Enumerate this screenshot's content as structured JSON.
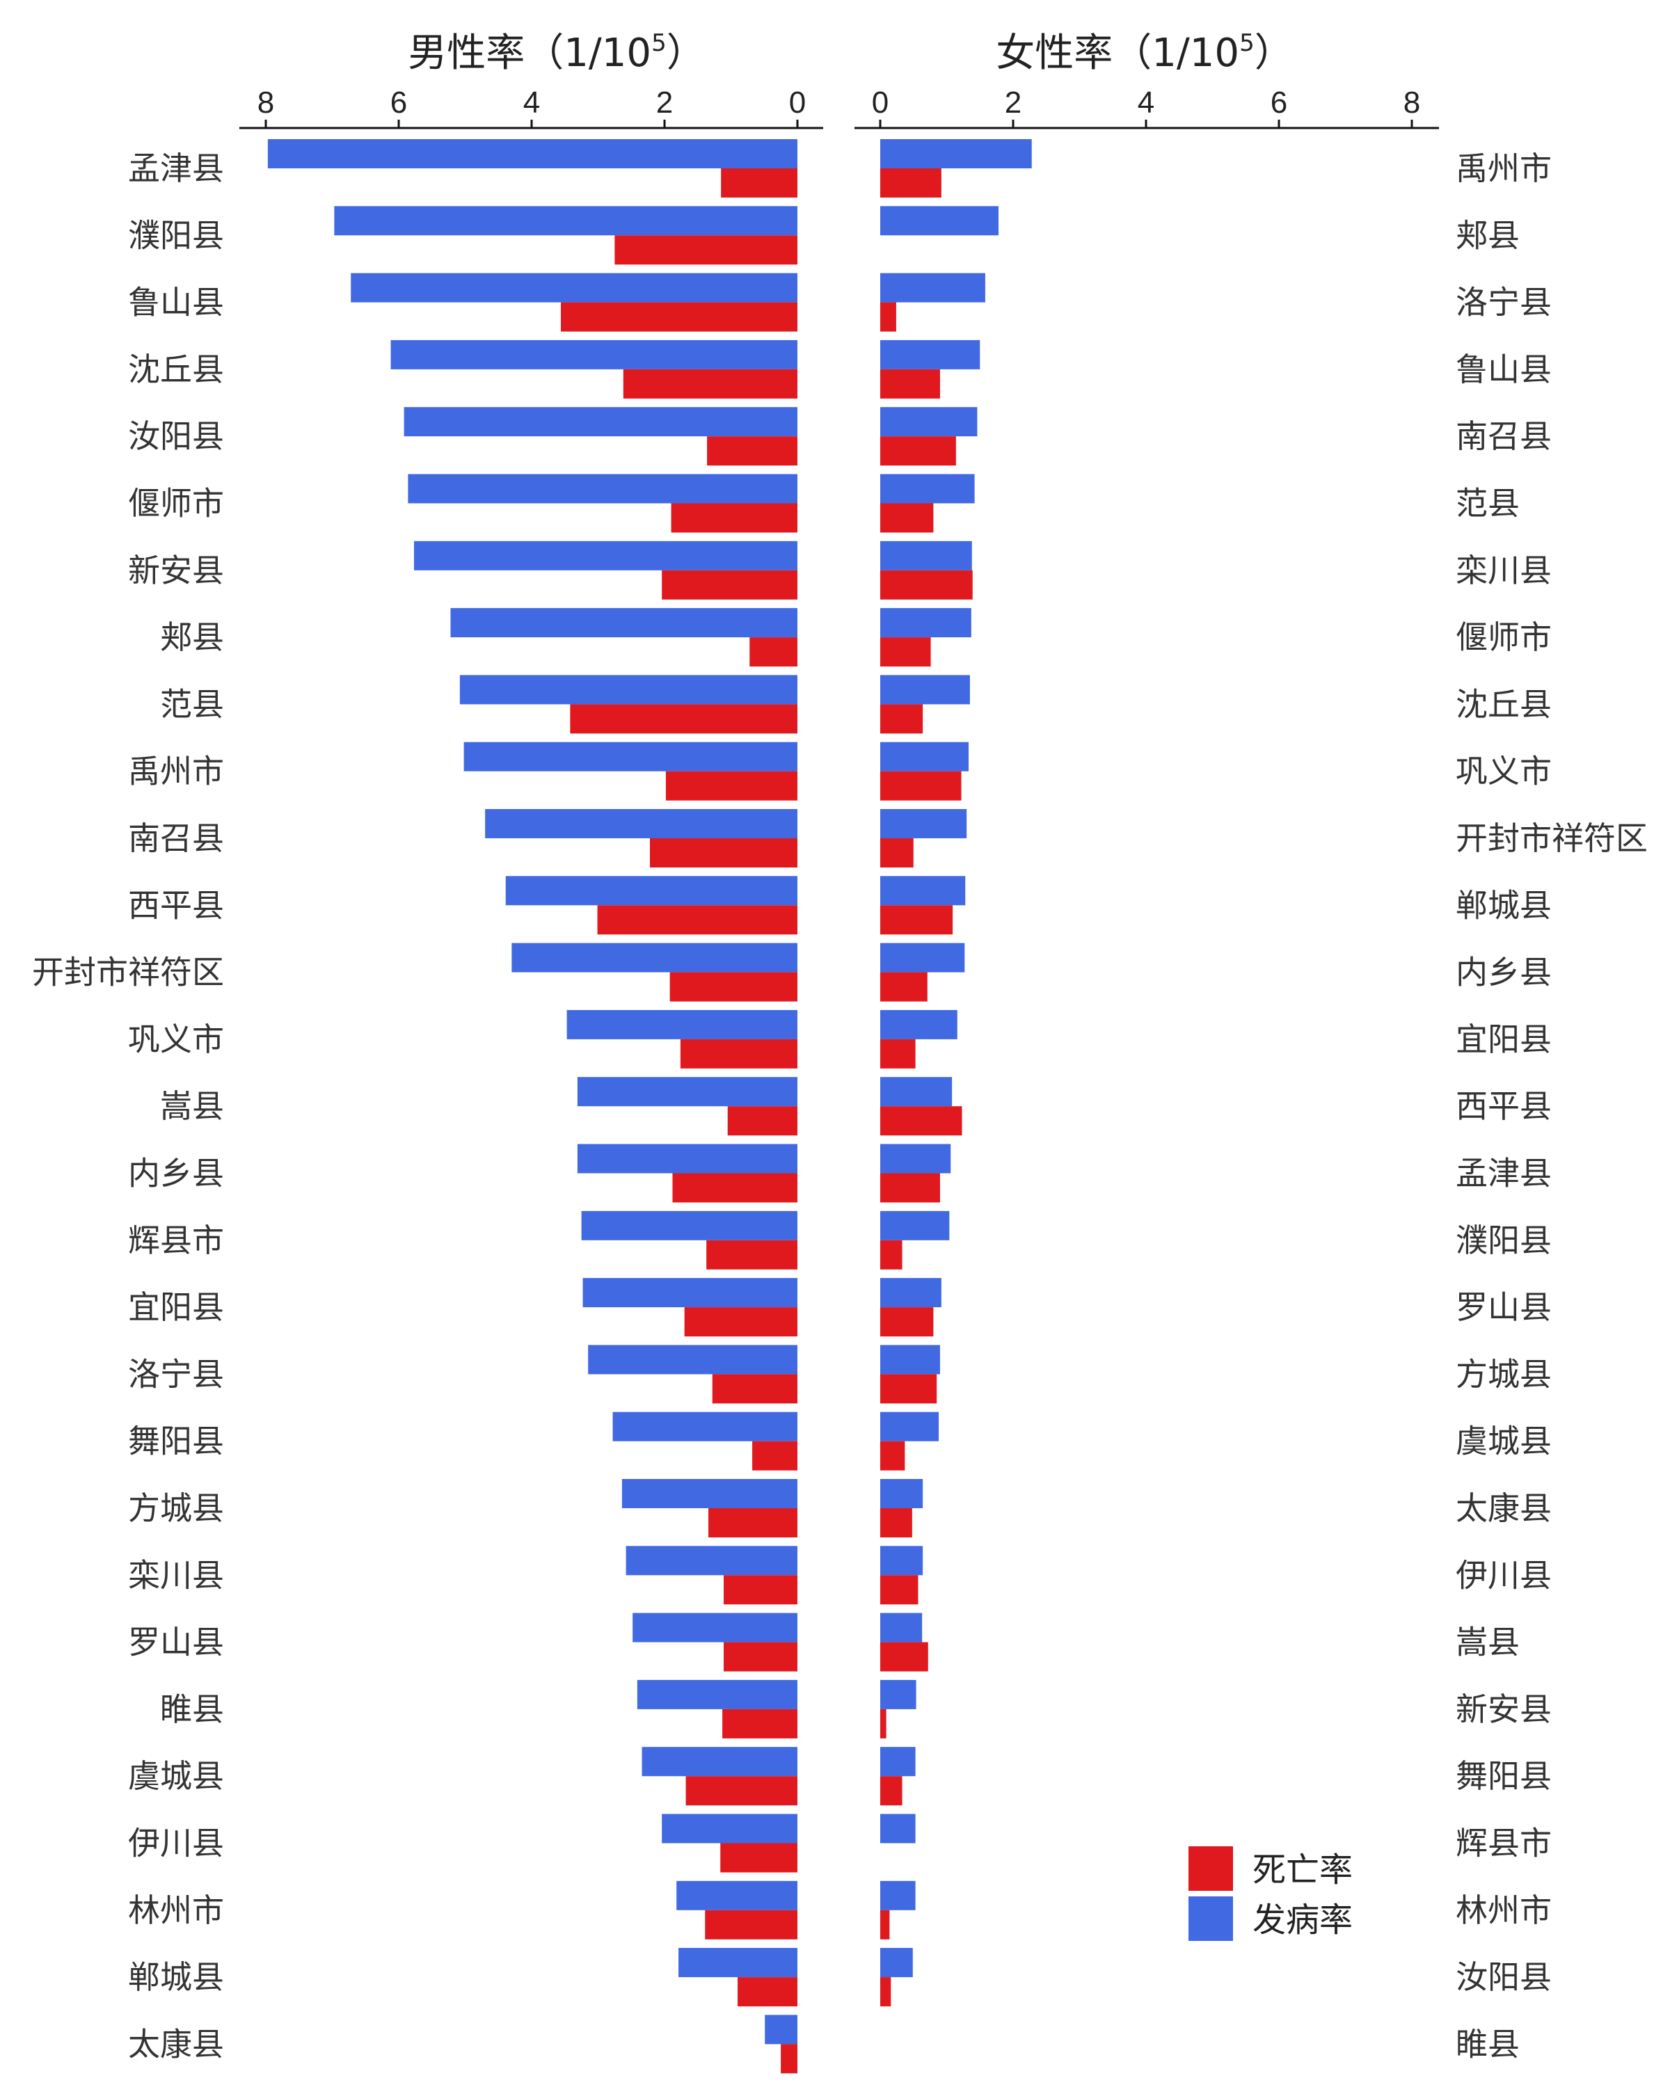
{
  "chart_data": [
    {
      "type": "bar",
      "orientation": "horizontal",
      "title": "男性率（1/10",
      "title_sup": "5",
      "title_close": "）",
      "xlim": [
        8,
        0
      ],
      "xticks": [
        "8",
        "6",
        "4",
        "2",
        "0"
      ],
      "categories": [
        "孟津县",
        "濮阳县",
        "鲁山县",
        "沈丘县",
        "汝阳县",
        "偃师市",
        "新安县",
        "郏县",
        "范县",
        "禹州市",
        "南召县",
        "西平县",
        "开封市祥符区",
        "巩义市",
        "嵩县",
        "内乡县",
        "辉县市",
        "宜阳县",
        "洛宁县",
        "舞阳县",
        "方城县",
        "栾川县",
        "罗山县",
        "睢县",
        "虞城县",
        "伊川县",
        "林州市",
        "郸城县",
        "太康县"
      ],
      "series": [
        {
          "name": "发病率",
          "color": "#4169E1",
          "values": [
            7.97,
            6.97,
            6.72,
            6.12,
            5.92,
            5.86,
            5.77,
            5.22,
            5.08,
            5.02,
            4.7,
            4.39,
            4.3,
            3.47,
            3.31,
            3.31,
            3.25,
            3.23,
            3.15,
            2.78,
            2.64,
            2.58,
            2.48,
            2.41,
            2.34,
            2.04,
            1.82,
            1.79,
            0.49
          ]
        },
        {
          "name": "死亡率",
          "color": "#E0191E",
          "values": [
            1.15,
            2.75,
            3.56,
            2.62,
            1.36,
            1.9,
            2.04,
            0.72,
            3.42,
            1.98,
            2.22,
            3.01,
            1.92,
            1.76,
            1.05,
            1.88,
            1.37,
            1.7,
            1.28,
            0.68,
            1.34,
            1.11,
            1.11,
            1.13,
            1.68,
            1.16,
            1.39,
            0.9,
            0.25
          ]
        }
      ]
    },
    {
      "type": "bar",
      "orientation": "horizontal",
      "title": "女性率（1/10",
      "title_sup": "5",
      "title_close": "）",
      "xlim": [
        0,
        8
      ],
      "xticks": [
        "0",
        "2",
        "4",
        "6",
        "8"
      ],
      "categories": [
        "禹州市",
        "郏县",
        "洛宁县",
        "鲁山县",
        "南召县",
        "范县",
        "栾川县",
        "偃师市",
        "沈丘县",
        "巩义市",
        "开封市祥符区",
        "郸城县",
        "内乡县",
        "宜阳县",
        "西平县",
        "孟津县",
        "濮阳县",
        "罗山县",
        "方城县",
        "虞城县",
        "太康县",
        "伊川县",
        "嵩县",
        "新安县",
        "舞阳县",
        "辉县市",
        "林州市",
        "汝阳县",
        "睢县"
      ],
      "series": [
        {
          "name": "发病率",
          "color": "#4169E1",
          "values": [
            2.28,
            1.78,
            1.58,
            1.5,
            1.46,
            1.42,
            1.38,
            1.37,
            1.35,
            1.33,
            1.3,
            1.28,
            1.27,
            1.16,
            1.08,
            1.06,
            1.04,
            0.92,
            0.9,
            0.88,
            0.64,
            0.64,
            0.63,
            0.54,
            0.53,
            0.53,
            0.53,
            0.49,
            0.0
          ]
        },
        {
          "name": "死亡率",
          "color": "#E0191E",
          "values": [
            0.92,
            0.0,
            0.24,
            0.9,
            1.14,
            0.8,
            1.39,
            0.76,
            0.64,
            1.22,
            0.5,
            1.09,
            0.71,
            0.53,
            1.23,
            0.9,
            0.33,
            0.8,
            0.85,
            0.37,
            0.48,
            0.57,
            0.72,
            0.09,
            0.33,
            0.0,
            0.14,
            0.16,
            0.0
          ]
        }
      ]
    }
  ],
  "legend": {
    "position": "bottom-right",
    "items": [
      {
        "label": "死亡率",
        "color": "#E0191E"
      },
      {
        "label": "发病率",
        "color": "#4169E1"
      }
    ]
  }
}
